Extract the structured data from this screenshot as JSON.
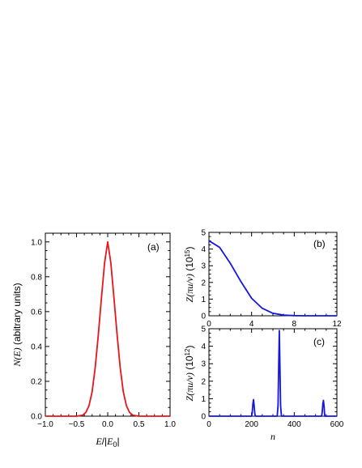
{
  "chart_data": [
    {
      "panel": "(a)",
      "type": "line",
      "xlabel": "E/|E0|",
      "ylabel": "N(E) (abitrary units)",
      "xlim": [
        -1.0,
        1.0
      ],
      "ylim": [
        0.0,
        1.05
      ],
      "xticks": [
        "-1.0",
        "-0.5",
        "0.0",
        "0.5",
        "1.0"
      ],
      "yticks": [
        "0.0",
        "0.2",
        "0.4",
        "0.6",
        "0.8",
        "1.0"
      ],
      "series": [
        {
          "color": "#e8141b",
          "x": [
            -1.0,
            -0.6,
            -0.5,
            -0.4,
            -0.35,
            -0.3,
            -0.25,
            -0.2,
            -0.15,
            -0.1,
            -0.05,
            0.0,
            0.05,
            0.1,
            0.15,
            0.2,
            0.25,
            0.3,
            0.35,
            0.4,
            0.5,
            0.6,
            1.0
          ],
          "y": [
            0.0,
            0.0,
            0.0,
            0.006,
            0.022,
            0.06,
            0.14,
            0.28,
            0.47,
            0.68,
            0.88,
            1.0,
            0.88,
            0.68,
            0.47,
            0.28,
            0.14,
            0.06,
            0.022,
            0.006,
            0.0,
            0.0,
            0.0
          ]
        }
      ]
    },
    {
      "panel": "(b)",
      "type": "line",
      "xlabel": "",
      "ylabel": "Z(πu/v) (10^15)",
      "xlim": [
        0,
        12
      ],
      "ylim": [
        0,
        5
      ],
      "xticks": [
        "0",
        "4",
        "8",
        "12"
      ],
      "yticks": [
        "0",
        "1",
        "2",
        "3",
        "4",
        "5"
      ],
      "series": [
        {
          "color": "#1515e0",
          "x": [
            0,
            1,
            2,
            3,
            4,
            5,
            6,
            7,
            8,
            9,
            10,
            11,
            12
          ],
          "y": [
            4.5,
            4.1,
            3.15,
            2.05,
            1.05,
            0.45,
            0.15,
            0.04,
            0.01,
            0.0,
            0.0,
            0.0,
            0.0
          ]
        }
      ]
    },
    {
      "panel": "(c)",
      "type": "line",
      "xlabel": "n",
      "ylabel": "Z(πu/v) (10^12)",
      "xlim": [
        0,
        600
      ],
      "ylim": [
        0,
        5
      ],
      "xticks": [
        "0",
        "200",
        "400",
        "600"
      ],
      "yticks": [
        "0",
        "1",
        "2",
        "3",
        "4",
        "5"
      ],
      "series": [
        {
          "color": "#1515e0",
          "x": [
            0,
            200,
            203,
            206,
            209,
            212,
            215,
            218,
            320,
            324,
            327,
            330,
            333,
            336,
            340,
            528,
            531,
            534,
            537,
            540,
            543,
            600
          ],
          "y": [
            0.0,
            0.0,
            0.2,
            0.7,
            0.95,
            0.6,
            0.15,
            0.0,
            0.0,
            0.6,
            2.8,
            4.9,
            2.8,
            0.6,
            0.0,
            0.0,
            0.2,
            0.7,
            0.9,
            0.55,
            0.0,
            0.0
          ]
        }
      ]
    }
  ],
  "labels": {
    "a_panel": "(a)",
    "b_panel": "(b)",
    "c_panel": "(c)",
    "a_ylabel_italic": "N(E)",
    "a_ylabel_rest": " (abitrary units)",
    "a_xlabel_E": "E",
    "a_xlabel_slash": "/|",
    "a_xlabel_E0": "E",
    "a_xlabel_sub": "0",
    "a_xlabel_bar": "|",
    "b_ylabel_italic": "Z(πu/v)",
    "b_ylabel_unit": " (10",
    "b_ylabel_exp": "15",
    "b_ylabel_close": ")",
    "c_ylabel_italic": "Z(πu/v)",
    "c_ylabel_unit": " (10",
    "c_ylabel_exp": "12",
    "c_ylabel_close": ")",
    "c_xlabel": "n"
  }
}
